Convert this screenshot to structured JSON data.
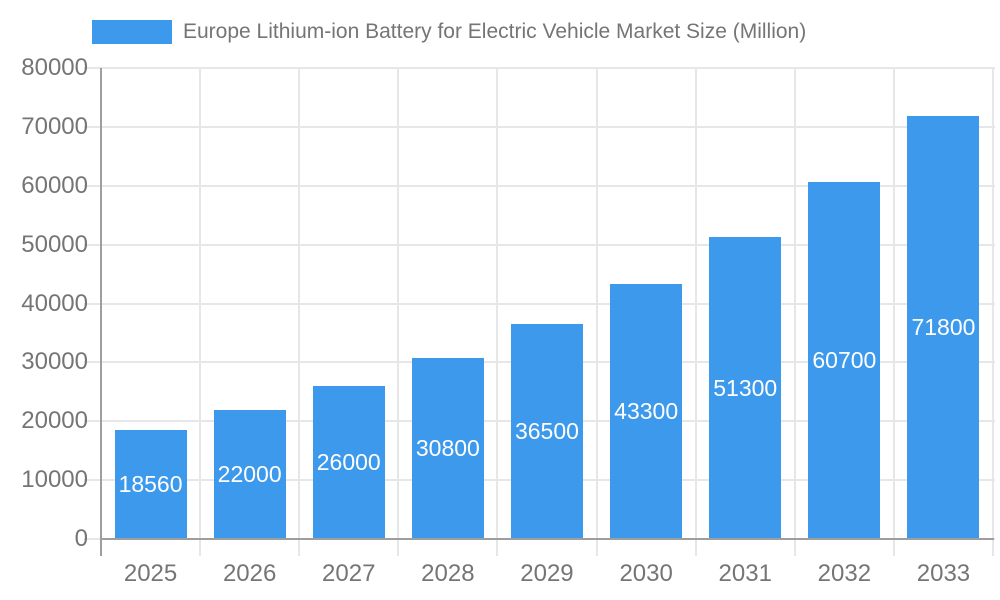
{
  "chart_data": {
    "type": "bar",
    "title": "Europe Lithium-ion Battery for Electric Vehicle Market Size (Million)",
    "categories": [
      "2025",
      "2026",
      "2027",
      "2028",
      "2029",
      "2030",
      "2031",
      "2032",
      "2033"
    ],
    "values": [
      18560,
      22000,
      26000,
      30800,
      36500,
      43300,
      51300,
      60700,
      71800
    ],
    "xlabel": "",
    "ylabel": "",
    "ylim": [
      0,
      80000
    ],
    "yticks": [
      0,
      10000,
      20000,
      30000,
      40000,
      50000,
      60000,
      70000,
      80000
    ],
    "grid": true,
    "legend_position": "top",
    "bar_labels_position": "inside-center"
  },
  "style": {
    "bar_color": "#3C99EB",
    "bar_label_color": "#ffffff",
    "axis_line_color": "#9e9e9e",
    "grid_color": "#e7e7e7",
    "tick_label_color": "#757575",
    "title_color": "#757575",
    "background_color": "#ffffff"
  }
}
